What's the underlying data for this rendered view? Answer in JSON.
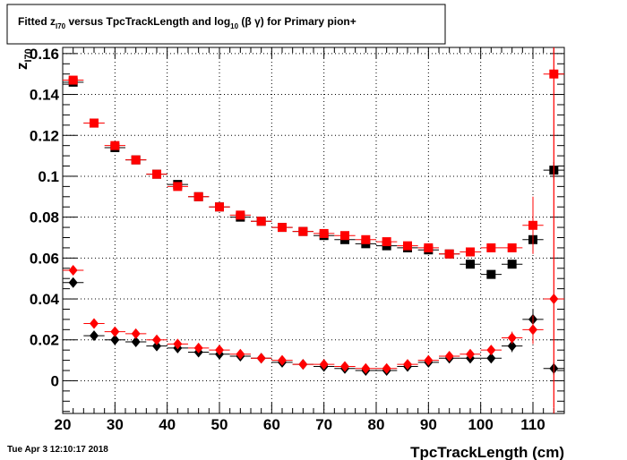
{
  "chart_data": {
    "type": "scatter",
    "title": "Fitted  z_{I70}  versus TpcTrackLength and log_{10} (β γ) for Primary pion+",
    "title_parts": {
      "pre": "Fitted  z",
      "sub1": "I70",
      "mid": "  versus TpcTrackLength and log",
      "sub2": "10",
      "post": " (β γ) for Primary pion+"
    },
    "xlabel": "TpcTrackLength (cm)",
    "ylabel": "z_{I70}",
    "ylabel_parts": {
      "main": "z",
      "sub": "I70"
    },
    "xlim": [
      20,
      116
    ],
    "ylim": [
      -0.016,
      0.163
    ],
    "xticks": [
      20,
      30,
      40,
      50,
      60,
      70,
      80,
      90,
      100,
      110
    ],
    "yticks": [
      0,
      0.02,
      0.04,
      0.06,
      0.08,
      0.1,
      0.12,
      0.14,
      0.16
    ],
    "ytick_labels": [
      "0",
      "0.02",
      "0.04",
      "0.06",
      "0.08",
      "0.1",
      "0.12",
      "0.14",
      "0.16"
    ],
    "grid": true,
    "series": [
      {
        "marker": "square",
        "color": "#000000",
        "x": [
          22,
          26,
          30,
          34,
          38,
          42,
          46,
          50,
          54,
          58,
          62,
          66,
          70,
          74,
          78,
          82,
          86,
          90,
          94,
          98,
          102,
          106,
          110,
          114
        ],
        "y": [
          0.146,
          0.126,
          0.114,
          0.108,
          0.101,
          0.096,
          0.09,
          0.085,
          0.08,
          0.078,
          0.075,
          0.073,
          0.071,
          0.069,
          0.067,
          0.066,
          0.065,
          0.064,
          0.062,
          0.057,
          0.052,
          0.057,
          0.069,
          0.103
        ],
        "yerr": [
          0,
          0,
          0,
          0,
          0,
          0,
          0,
          0,
          0,
          0,
          0,
          0,
          0,
          0,
          0,
          0,
          0,
          0,
          0,
          0,
          0,
          0.002,
          0.006,
          0.004
        ]
      },
      {
        "marker": "square",
        "color": "#ff0000",
        "x": [
          22,
          26,
          30,
          34,
          38,
          42,
          46,
          50,
          54,
          58,
          62,
          66,
          70,
          74,
          78,
          82,
          86,
          90,
          94,
          98,
          102,
          106,
          110,
          114
        ],
        "y": [
          0.147,
          0.126,
          0.115,
          0.108,
          0.101,
          0.095,
          0.09,
          0.085,
          0.081,
          0.078,
          0.075,
          0.073,
          0.072,
          0.071,
          0.069,
          0.068,
          0.066,
          0.065,
          0.062,
          0.063,
          0.065,
          0.065,
          0.076,
          0.15
        ],
        "yerr": [
          0,
          0,
          0,
          0,
          0,
          0,
          0,
          0,
          0,
          0,
          0,
          0,
          0,
          0,
          0,
          0,
          0,
          0,
          0,
          0,
          0,
          0.002,
          0.014,
          0.163
        ]
      },
      {
        "marker": "diamond",
        "color": "#000000",
        "x": [
          22,
          26,
          30,
          34,
          38,
          42,
          46,
          50,
          54,
          58,
          62,
          66,
          70,
          74,
          78,
          82,
          86,
          90,
          94,
          98,
          102,
          106,
          110,
          114
        ],
        "y": [
          0.048,
          0.022,
          0.02,
          0.019,
          0.017,
          0.016,
          0.014,
          0.013,
          0.012,
          0.011,
          0.009,
          0.008,
          0.007,
          0.006,
          0.005,
          0.005,
          0.007,
          0.009,
          0.011,
          0.011,
          0.011,
          0.017,
          0.03,
          0.006
        ],
        "yerr": [
          0,
          0,
          0,
          0,
          0,
          0,
          0,
          0,
          0,
          0,
          0,
          0,
          0,
          0,
          0,
          0,
          0,
          0,
          0,
          0,
          0,
          0.003,
          0.005,
          0.003
        ]
      },
      {
        "marker": "diamond",
        "color": "#ff0000",
        "x": [
          22,
          26,
          30,
          34,
          38,
          42,
          46,
          50,
          54,
          58,
          62,
          66,
          70,
          74,
          78,
          82,
          86,
          90,
          94,
          98,
          102,
          106,
          110,
          114
        ],
        "y": [
          0.054,
          0.028,
          0.024,
          0.023,
          0.02,
          0.018,
          0.016,
          0.015,
          0.013,
          0.011,
          0.01,
          0.008,
          0.008,
          0.007,
          0.006,
          0.006,
          0.008,
          0.01,
          0.012,
          0.013,
          0.015,
          0.021,
          0.025,
          0.04
        ],
        "yerr": [
          0,
          0,
          0,
          0,
          0,
          0,
          0,
          0,
          0,
          0,
          0,
          0,
          0,
          0,
          0,
          0,
          0,
          0,
          0,
          0,
          0,
          0.003,
          0.007,
          0.163
        ]
      }
    ]
  },
  "footer": {
    "timestamp": "Tue Apr  3 12:10:17 2018"
  }
}
